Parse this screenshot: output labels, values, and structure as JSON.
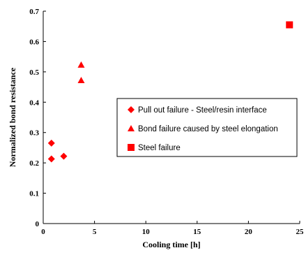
{
  "chart_data": {
    "type": "scatter",
    "title": "",
    "xlabel": "Cooling time [h]",
    "ylabel": "Normalized bond resistance",
    "xlim": [
      0,
      25
    ],
    "ylim": [
      0,
      0.7
    ],
    "x_ticks": [
      0,
      5,
      10,
      15,
      20,
      25
    ],
    "y_ticks": [
      0,
      0.1,
      0.2,
      0.3,
      0.4,
      0.5,
      0.6,
      0.7
    ],
    "grid": false,
    "legend_position": "right",
    "series": [
      {
        "name": "Pull out failure - Steel/resin interface",
        "marker": "diamond",
        "color": "#ff0000",
        "points": [
          [
            0.8,
            0.265
          ],
          [
            0.8,
            0.213
          ],
          [
            2.0,
            0.222
          ]
        ]
      },
      {
        "name": "Bond failure caused by steel elongation",
        "marker": "triangle",
        "color": "#ff0000",
        "points": [
          [
            3.7,
            0.523
          ],
          [
            3.7,
            0.472
          ]
        ]
      },
      {
        "name": "Steel failure",
        "marker": "square",
        "color": "#ff0000",
        "points": [
          [
            24.0,
            0.655
          ]
        ]
      }
    ]
  }
}
